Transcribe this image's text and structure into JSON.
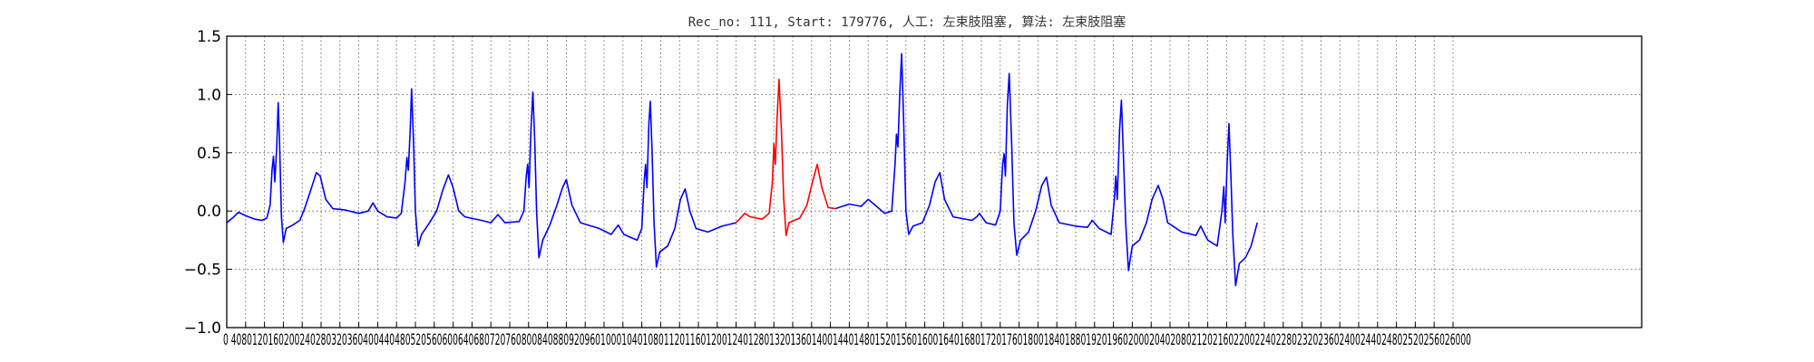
{
  "chart_data": {
    "type": "line",
    "title": "Rec_no: 111, Start: 179776, 人工: 左束肢阻塞, 算法: 左束肢阻塞",
    "xlabel": "",
    "ylabel": "",
    "xlim": [
      0,
      3000
    ],
    "ylim": [
      -1.0,
      1.5
    ],
    "grid": true,
    "grid_style": "dotted",
    "x_ticks": [
      0,
      40,
      80,
      120,
      160,
      200,
      240,
      280,
      320,
      360,
      400,
      440,
      480,
      520,
      560,
      600,
      640,
      680,
      720,
      760,
      800,
      840,
      880,
      920,
      960,
      1000,
      1040,
      1080,
      1120,
      1160,
      1200,
      1240,
      1280,
      1320,
      1360,
      1400,
      1440,
      1480,
      1520,
      1560,
      1600,
      1640,
      1680,
      1720,
      1760,
      1800,
      1840,
      1880,
      1920,
      1960,
      2000,
      2040,
      2080,
      2120,
      2160,
      2200,
      2240,
      2280,
      2320,
      2360,
      2400,
      2440,
      2480,
      2520,
      2560,
      2600
    ],
    "x_tick_labels_printed": "0 4080120160200240280320360400440480520560600640680720760800840880920960100010401080112011601200124012801320136014001440148015201560160016401680172017601800184018801920196020002040208021202160220022402280232023602400244024802520256026000",
    "y_ticks": [
      -1.0,
      -0.5,
      0.0,
      0.5,
      1.0,
      1.5
    ],
    "y_tick_labels": [
      "−1.0",
      "−0.5",
      "0.0",
      "0.5",
      "1.0",
      "1.5"
    ],
    "series": [
      {
        "color": "#0000ff",
        "points": [
          [
            0,
            -0.1
          ],
          [
            15,
            -0.05
          ],
          [
            25,
            -0.01
          ],
          [
            40,
            -0.04
          ],
          [
            60,
            -0.07
          ],
          [
            75,
            -0.08
          ],
          [
            85,
            -0.06
          ],
          [
            92,
            0.05
          ],
          [
            96,
            0.35
          ],
          [
            99,
            0.47
          ],
          [
            102,
            0.25
          ],
          [
            106,
            0.55
          ],
          [
            109,
            0.93
          ],
          [
            112,
            0.6
          ],
          [
            116,
            -0.05
          ],
          [
            120,
            -0.27
          ],
          [
            126,
            -0.15
          ],
          [
            140,
            -0.12
          ],
          [
            155,
            -0.08
          ],
          [
            165,
            0.02
          ],
          [
            178,
            0.18
          ],
          [
            190,
            0.33
          ],
          [
            198,
            0.3
          ],
          [
            210,
            0.1
          ],
          [
            225,
            0.02
          ],
          [
            250,
            0.01
          ],
          [
            280,
            -0.02
          ],
          [
            300,
            0.0
          ],
          [
            310,
            0.07
          ],
          [
            320,
            0.0
          ],
          [
            340,
            -0.05
          ],
          [
            360,
            -0.06
          ],
          [
            370,
            -0.02
          ],
          [
            378,
            0.25
          ],
          [
            382,
            0.46
          ],
          [
            385,
            0.35
          ],
          [
            389,
            0.7
          ],
          [
            392,
            1.05
          ],
          [
            396,
            0.6
          ],
          [
            400,
            0.0
          ],
          [
            406,
            -0.3
          ],
          [
            413,
            -0.2
          ],
          [
            430,
            -0.1
          ],
          [
            445,
            0.0
          ],
          [
            458,
            0.18
          ],
          [
            470,
            0.31
          ],
          [
            480,
            0.2
          ],
          [
            492,
            0.0
          ],
          [
            505,
            -0.05
          ],
          [
            540,
            -0.08
          ],
          [
            560,
            -0.1
          ],
          [
            575,
            -0.03
          ],
          [
            590,
            -0.1
          ],
          [
            620,
            -0.09
          ],
          [
            630,
            0.0
          ],
          [
            635,
            0.3
          ],
          [
            638,
            0.4
          ],
          [
            641,
            0.2
          ],
          [
            645,
            0.7
          ],
          [
            649,
            1.02
          ],
          [
            653,
            0.6
          ],
          [
            657,
            0.0
          ],
          [
            662,
            -0.4
          ],
          [
            670,
            -0.25
          ],
          [
            685,
            -0.12
          ],
          [
            700,
            0.05
          ],
          [
            712,
            0.2
          ],
          [
            720,
            0.27
          ],
          [
            732,
            0.05
          ],
          [
            750,
            -0.1
          ],
          [
            790,
            -0.15
          ],
          [
            815,
            -0.2
          ],
          [
            830,
            -0.12
          ],
          [
            842,
            -0.2
          ],
          [
            870,
            -0.25
          ],
          [
            880,
            -0.15
          ],
          [
            885,
            0.25
          ],
          [
            888,
            0.4
          ],
          [
            891,
            0.2
          ],
          [
            895,
            0.75
          ],
          [
            898,
            0.94
          ],
          [
            902,
            0.5
          ],
          [
            906,
            -0.1
          ],
          [
            911,
            -0.48
          ],
          [
            918,
            -0.35
          ],
          [
            935,
            -0.3
          ],
          [
            950,
            -0.15
          ],
          [
            962,
            0.1
          ],
          [
            972,
            0.19
          ],
          [
            982,
            0.0
          ],
          [
            995,
            -0.15
          ],
          [
            1020,
            -0.18
          ],
          [
            1050,
            -0.13
          ],
          [
            1080,
            -0.1
          ]
        ]
      },
      {
        "color": "#ff0000",
        "points": [
          [
            1080,
            -0.1
          ],
          [
            1098,
            -0.02
          ],
          [
            1110,
            -0.05
          ],
          [
            1135,
            -0.07
          ],
          [
            1150,
            -0.02
          ],
          [
            1157,
            0.25
          ],
          [
            1160,
            0.58
          ],
          [
            1163,
            0.4
          ],
          [
            1167,
            0.8
          ],
          [
            1171,
            1.13
          ],
          [
            1176,
            0.7
          ],
          [
            1181,
            0.1
          ],
          [
            1186,
            -0.21
          ],
          [
            1192,
            -0.1
          ],
          [
            1215,
            -0.06
          ],
          [
            1230,
            0.05
          ],
          [
            1242,
            0.25
          ],
          [
            1252,
            0.4
          ],
          [
            1262,
            0.2
          ],
          [
            1275,
            0.03
          ],
          [
            1290,
            0.02
          ]
        ]
      },
      {
        "color": "#0000ff",
        "points": [
          [
            1290,
            0.02
          ],
          [
            1320,
            0.06
          ],
          [
            1345,
            0.04
          ],
          [
            1360,
            0.1
          ],
          [
            1375,
            0.05
          ],
          [
            1395,
            -0.02
          ],
          [
            1410,
            0.0
          ],
          [
            1417,
            0.4
          ],
          [
            1420,
            0.66
          ],
          [
            1423,
            0.55
          ],
          [
            1427,
            1.0
          ],
          [
            1431,
            1.35
          ],
          [
            1435,
            0.8
          ],
          [
            1440,
            0.0
          ],
          [
            1446,
            -0.2
          ],
          [
            1455,
            -0.13
          ],
          [
            1475,
            -0.1
          ],
          [
            1490,
            0.05
          ],
          [
            1502,
            0.25
          ],
          [
            1512,
            0.33
          ],
          [
            1522,
            0.1
          ],
          [
            1540,
            -0.05
          ],
          [
            1580,
            -0.08
          ],
          [
            1590,
            -0.05
          ],
          [
            1596,
            -0.02
          ],
          [
            1610,
            -0.1
          ],
          [
            1630,
            -0.12
          ],
          [
            1640,
            0.0
          ],
          [
            1645,
            0.4
          ],
          [
            1648,
            0.49
          ],
          [
            1651,
            0.3
          ],
          [
            1655,
            0.9
          ],
          [
            1659,
            1.18
          ],
          [
            1664,
            0.6
          ],
          [
            1669,
            -0.1
          ],
          [
            1675,
            -0.38
          ],
          [
            1683,
            -0.25
          ],
          [
            1700,
            -0.18
          ],
          [
            1715,
            0.0
          ],
          [
            1728,
            0.22
          ],
          [
            1738,
            0.29
          ],
          [
            1748,
            0.05
          ],
          [
            1765,
            -0.1
          ],
          [
            1800,
            -0.13
          ],
          [
            1825,
            -0.14
          ],
          [
            1835,
            -0.08
          ],
          [
            1850,
            -0.15
          ],
          [
            1875,
            -0.2
          ],
          [
            1882,
            0.1
          ],
          [
            1885,
            0.3
          ],
          [
            1888,
            0.1
          ],
          [
            1893,
            0.7
          ],
          [
            1897,
            0.95
          ],
          [
            1901,
            0.5
          ],
          [
            1906,
            -0.1
          ],
          [
            1912,
            -0.51
          ],
          [
            1920,
            -0.3
          ],
          [
            1935,
            -0.25
          ],
          [
            1950,
            -0.1
          ],
          [
            1962,
            0.1
          ],
          [
            1975,
            0.22
          ],
          [
            1985,
            0.1
          ],
          [
            1995,
            -0.1
          ],
          [
            2025,
            -0.18
          ],
          [
            2055,
            -0.21
          ],
          [
            2065,
            -0.13
          ],
          [
            2080,
            -0.25
          ],
          [
            2100,
            -0.3
          ],
          [
            2110,
            0.0
          ],
          [
            2114,
            0.21
          ],
          [
            2117,
            -0.1
          ],
          [
            2121,
            0.4
          ],
          [
            2125,
            0.75
          ],
          [
            2129,
            0.3
          ],
          [
            2133,
            -0.2
          ],
          [
            2139,
            -0.64
          ],
          [
            2147,
            -0.45
          ],
          [
            2160,
            -0.4
          ],
          [
            2172,
            -0.3
          ],
          [
            2185,
            -0.1
          ]
        ]
      }
    ]
  }
}
